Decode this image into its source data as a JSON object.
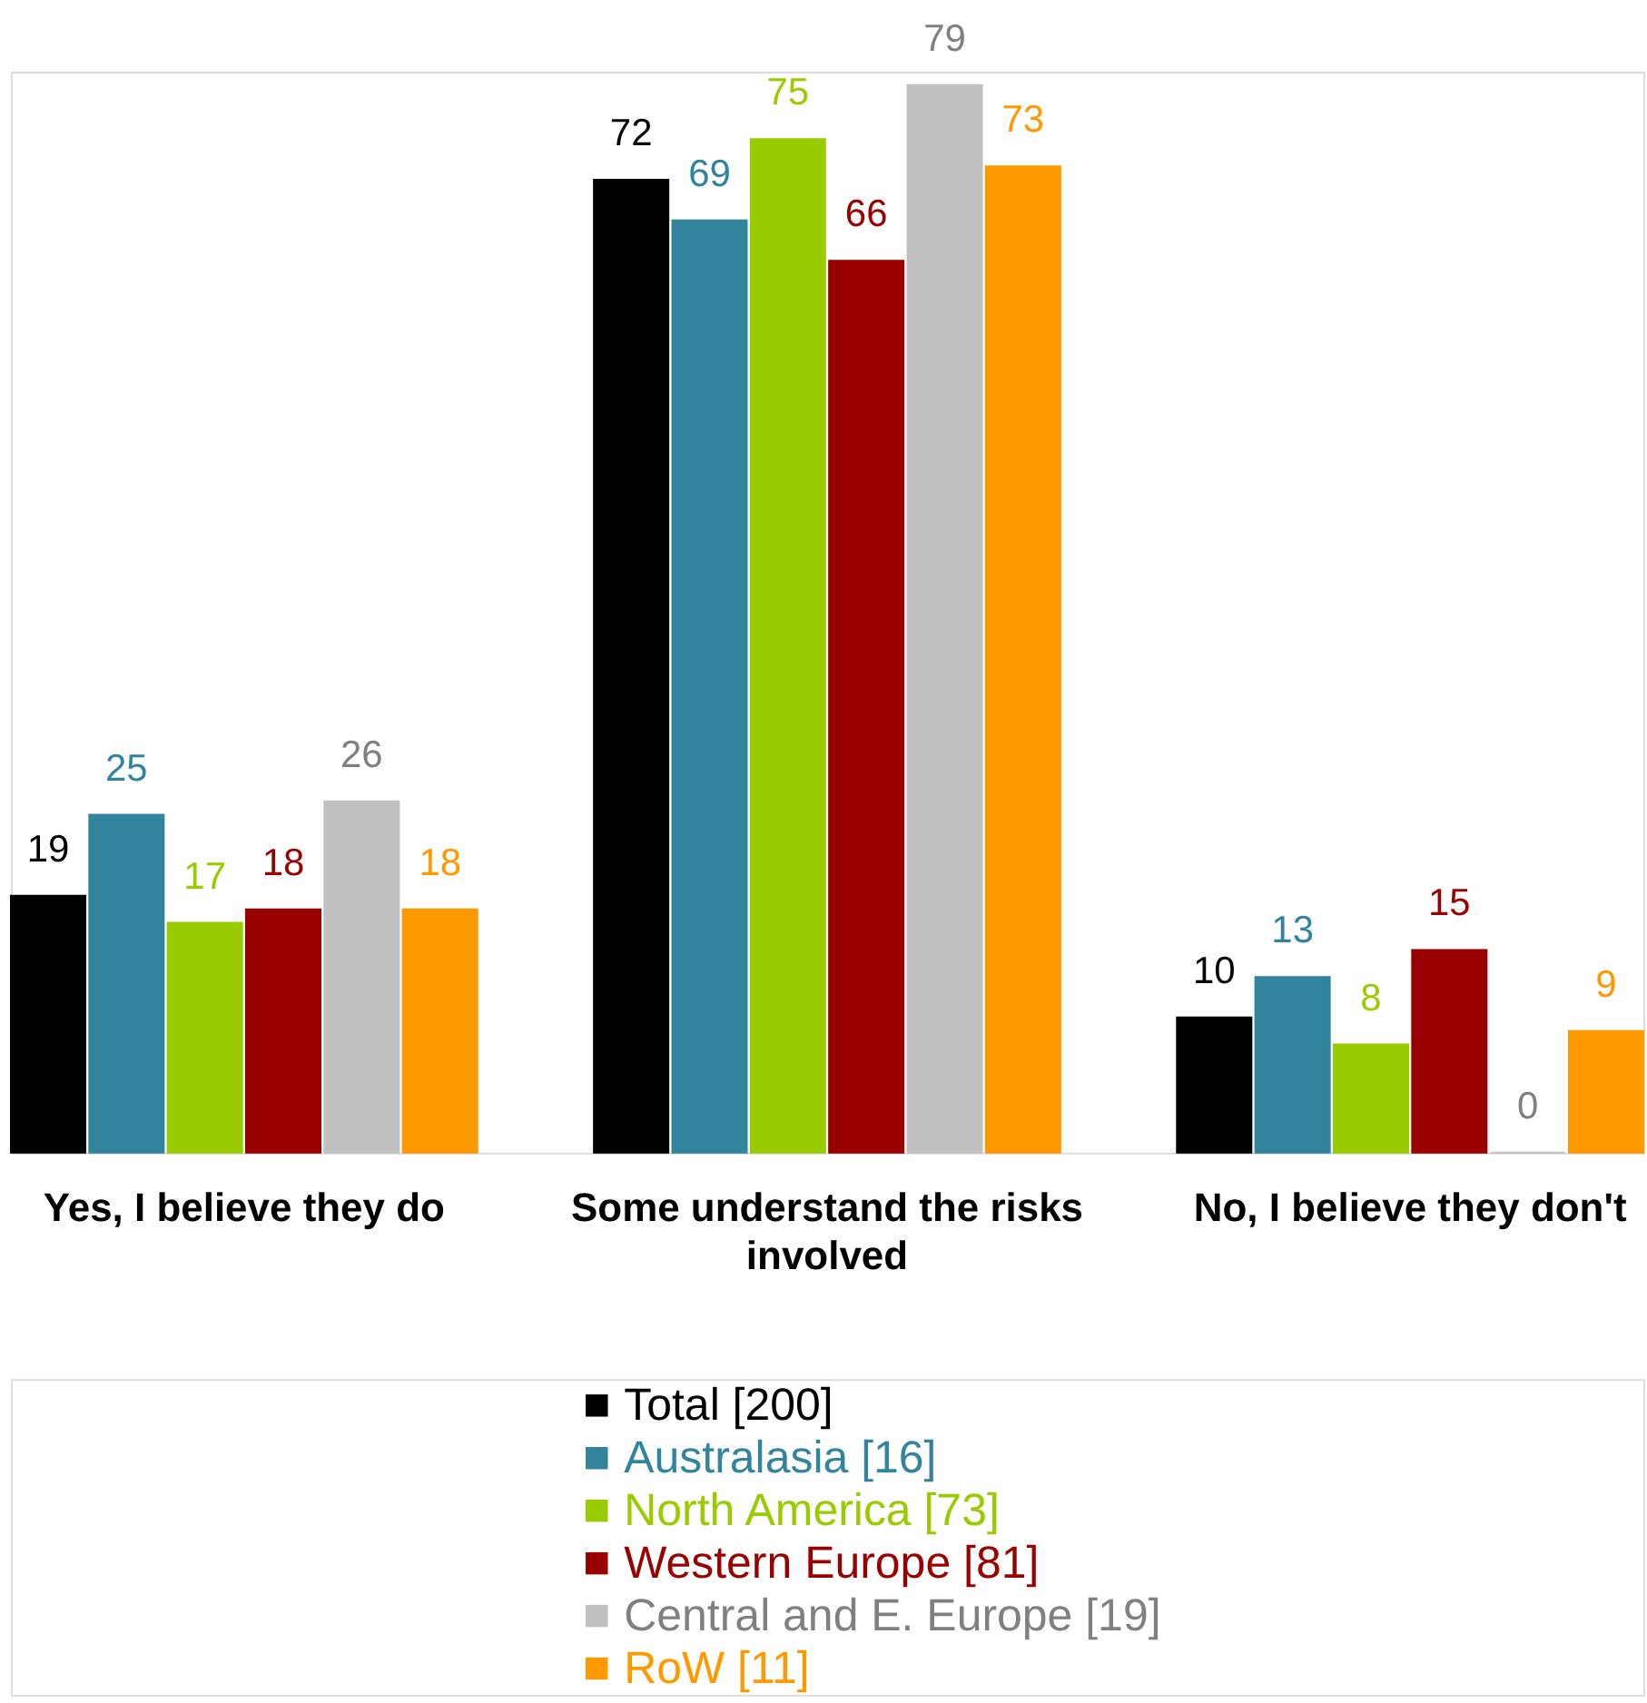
{
  "chart_data": {
    "type": "bar",
    "categories": [
      "Yes, I believe they do",
      "Some understand the risks involved",
      "No, I believe they don't"
    ],
    "series": [
      {
        "name": "Total [200]",
        "color": "#000000",
        "values": [
          19,
          72,
          10
        ]
      },
      {
        "name": "Australasia [16]",
        "color": "#31849b",
        "values": [
          25,
          69,
          13
        ]
      },
      {
        "name": "North America [73]",
        "color": "#99cc00",
        "values": [
          17,
          75,
          8
        ]
      },
      {
        "name": "Western Europe [81]",
        "color": "#990000",
        "values": [
          18,
          66,
          15
        ]
      },
      {
        "name": "Central and E. Europe [19]",
        "color": "#c0c0c0",
        "values": [
          26,
          79,
          0
        ]
      },
      {
        "name": "RoW [11]",
        "color": "#ff9900",
        "values": [
          18,
          73,
          9
        ]
      }
    ],
    "data_labels": true,
    "legend": "bottom"
  }
}
